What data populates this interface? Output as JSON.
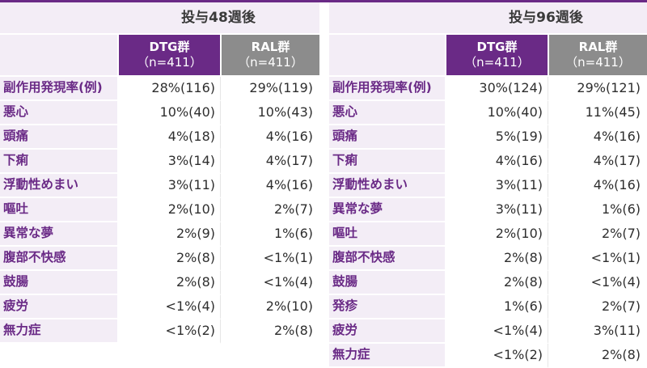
{
  "colors": {
    "accent": "#6a2a86",
    "ral": "#8c8c8c",
    "row_bg": "#f3edf6"
  },
  "tables": [
    {
      "period": "投与48週後",
      "groups": [
        {
          "name": "DTG群",
          "n": "（n=411）"
        },
        {
          "name": "RAL群",
          "n": "（n=411）"
        }
      ],
      "rows": [
        {
          "label": "副作用発現率(例)",
          "dtg": "28%(116)",
          "ral": "29%(119)"
        },
        {
          "label": "悪心",
          "dtg": "10%(40)",
          "ral": "10%(43)"
        },
        {
          "label": "頭痛",
          "dtg": "4%(18)",
          "ral": "4%(16)"
        },
        {
          "label": "下痢",
          "dtg": "3%(14)",
          "ral": "4%(17)"
        },
        {
          "label": "浮動性めまい",
          "dtg": "3%(11)",
          "ral": "4%(16)"
        },
        {
          "label": "嘔吐",
          "dtg": "2%(10)",
          "ral": "2%(7)"
        },
        {
          "label": "異常な夢",
          "dtg": "2%(9)",
          "ral": "1%(6)"
        },
        {
          "label": "腹部不快感",
          "dtg": "2%(8)",
          "ral": "<1%(1)"
        },
        {
          "label": "鼓腸",
          "dtg": "2%(8)",
          "ral": "<1%(4)"
        },
        {
          "label": "疲労",
          "dtg": "<1%(4)",
          "ral": "2%(10)"
        },
        {
          "label": "無力症",
          "dtg": "<1%(2)",
          "ral": "2%(8)"
        }
      ]
    },
    {
      "period": "投与96週後",
      "groups": [
        {
          "name": "DTG群",
          "n": "（n=411）"
        },
        {
          "name": "RAL群",
          "n": "（n=411）"
        }
      ],
      "rows": [
        {
          "label": "副作用発現率(例)",
          "dtg": "30%(124)",
          "ral": "29%(121)"
        },
        {
          "label": "悪心",
          "dtg": "10%(40)",
          "ral": "11%(45)"
        },
        {
          "label": "頭痛",
          "dtg": "5%(19)",
          "ral": "4%(16)"
        },
        {
          "label": "下痢",
          "dtg": "4%(16)",
          "ral": "4%(17)"
        },
        {
          "label": "浮動性めまい",
          "dtg": "3%(11)",
          "ral": "4%(16)"
        },
        {
          "label": "異常な夢",
          "dtg": "3%(11)",
          "ral": "1%(6)"
        },
        {
          "label": "嘔吐",
          "dtg": "2%(10)",
          "ral": "2%(7)"
        },
        {
          "label": "腹部不快感",
          "dtg": "2%(8)",
          "ral": "<1%(1)"
        },
        {
          "label": "鼓腸",
          "dtg": "2%(8)",
          "ral": "<1%(4)"
        },
        {
          "label": "発疹",
          "dtg": "1%(6)",
          "ral": "2%(7)"
        },
        {
          "label": "疲労",
          "dtg": "<1%(4)",
          "ral": "3%(11)"
        },
        {
          "label": "無力症",
          "dtg": "<1%(2)",
          "ral": "2%(8)"
        }
      ]
    }
  ]
}
